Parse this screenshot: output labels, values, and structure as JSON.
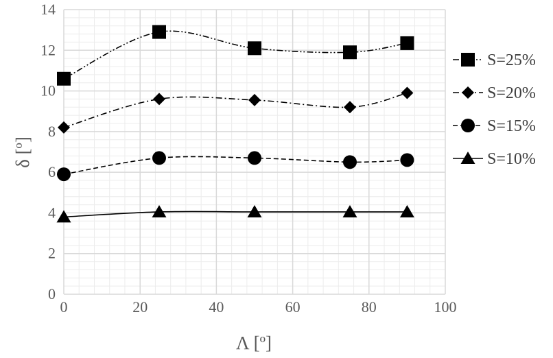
{
  "chart_data": {
    "type": "line",
    "title": "",
    "xlabel": "Λ [º]",
    "ylabel": "δ [º]",
    "xlim": [
      0,
      100
    ],
    "ylim": [
      0,
      14
    ],
    "x_ticks": [
      0,
      20,
      40,
      60,
      80,
      100
    ],
    "y_ticks": [
      0,
      2,
      4,
      6,
      8,
      10,
      12,
      14
    ],
    "grid": true,
    "legend_position": "right",
    "x": [
      0,
      25,
      50,
      75,
      90
    ],
    "series": [
      {
        "name": "S=25%",
        "marker": "square",
        "dash": "dash-dot-dot",
        "values": [
          10.6,
          12.9,
          12.1,
          11.9,
          12.35
        ]
      },
      {
        "name": "S=20%",
        "marker": "diamond",
        "dash": "dash-dot",
        "values": [
          8.2,
          9.6,
          9.55,
          9.2,
          9.9
        ]
      },
      {
        "name": "S=15%",
        "marker": "circle",
        "dash": "dash",
        "values": [
          5.9,
          6.7,
          6.7,
          6.5,
          6.6
        ]
      },
      {
        "name": "S=10%",
        "marker": "triangle",
        "dash": "solid",
        "values": [
          3.8,
          4.05,
          4.05,
          4.05,
          4.05
        ]
      }
    ],
    "colors": {
      "series": "#000000",
      "grid": "#d9d9d9",
      "text": "#595959"
    }
  }
}
